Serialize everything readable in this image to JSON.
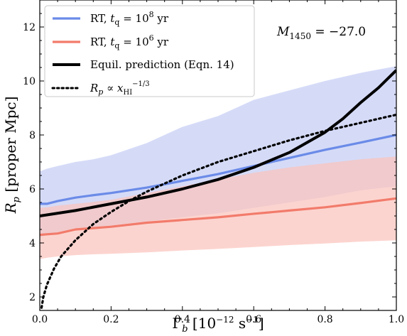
{
  "chart_data": {
    "type": "line",
    "xlabel": "Γb [10⁻¹² s⁻¹]",
    "ylabel": "Rp [proper Mpc]",
    "xlim": [
      0.0,
      1.0
    ],
    "ylim": [
      1.5,
      13.0
    ],
    "xticks": [
      0.0,
      0.2,
      0.4,
      0.6,
      0.8,
      1.0
    ],
    "xtick_labels": [
      "0.0",
      "0.2",
      "0.4",
      "0.6",
      "0.8",
      "1.0"
    ],
    "yticks": [
      2,
      4,
      6,
      8,
      10,
      12
    ],
    "ytick_labels": [
      "2",
      "4",
      "6",
      "8",
      "10",
      "12"
    ],
    "grid": false,
    "legend_position": "top-left",
    "annotation": "M1450 = −27.0",
    "series": [
      {
        "name": "RT, tq = 10⁸ yr",
        "color": "#6b8be8",
        "band_color": "#c5cdf4",
        "x": [
          0.0,
          0.02,
          0.05,
          0.1,
          0.15,
          0.2,
          0.3,
          0.4,
          0.5,
          0.6,
          0.7,
          0.8,
          0.9,
          1.0
        ],
        "y": [
          5.45,
          5.45,
          5.55,
          5.68,
          5.77,
          5.85,
          6.05,
          6.3,
          6.55,
          6.85,
          7.15,
          7.45,
          7.72,
          8.0
        ],
        "band_upper": [
          6.65,
          6.75,
          6.85,
          7.0,
          7.1,
          7.25,
          7.7,
          8.3,
          8.7,
          9.3,
          9.65,
          10.0,
          10.3,
          10.55
        ],
        "band_lower": [
          4.2,
          4.3,
          4.4,
          4.55,
          4.6,
          4.65,
          4.8,
          4.95,
          5.1,
          5.3,
          5.5,
          5.7,
          5.95,
          6.1
        ]
      },
      {
        "name": "RT, tq = 10⁶ yr",
        "color": "#f27b6b",
        "band_color": "#fbc4bc",
        "x": [
          0.0,
          0.02,
          0.05,
          0.1,
          0.15,
          0.2,
          0.3,
          0.4,
          0.5,
          0.6,
          0.7,
          0.8,
          0.9,
          1.0
        ],
        "y": [
          4.3,
          4.32,
          4.35,
          4.5,
          4.55,
          4.6,
          4.75,
          4.85,
          4.95,
          5.08,
          5.2,
          5.32,
          5.48,
          5.65
        ],
        "band_upper": [
          5.3,
          5.32,
          5.38,
          5.45,
          5.52,
          5.6,
          5.85,
          6.1,
          6.35,
          6.6,
          6.8,
          6.95,
          7.1,
          7.2
        ],
        "band_lower": [
          3.4,
          3.45,
          3.5,
          3.55,
          3.58,
          3.6,
          3.65,
          3.72,
          3.78,
          3.85,
          3.92,
          3.98,
          4.05,
          4.1
        ]
      },
      {
        "name": "Equil. prediction (Eqn. 14)",
        "color": "#000000",
        "style": "solid",
        "x": [
          0.0,
          0.1,
          0.2,
          0.3,
          0.4,
          0.5,
          0.6,
          0.7,
          0.8,
          0.85,
          0.9,
          0.95,
          1.0
        ],
        "y": [
          5.0,
          5.2,
          5.45,
          5.7,
          6.0,
          6.35,
          6.8,
          7.35,
          8.1,
          8.6,
          9.2,
          9.75,
          10.4
        ]
      },
      {
        "name": "Rp ∝ xHI^−1/3",
        "color": "#000000",
        "style": "dotted",
        "x": [
          0.005,
          0.01,
          0.02,
          0.04,
          0.06,
          0.1,
          0.15,
          0.2,
          0.25,
          0.3,
          0.4,
          0.5,
          0.6,
          0.7,
          0.8,
          0.9,
          1.0
        ],
        "y": [
          1.6,
          2.0,
          2.45,
          3.05,
          3.5,
          4.1,
          4.7,
          5.15,
          5.55,
          5.9,
          6.5,
          7.0,
          7.4,
          7.8,
          8.15,
          8.45,
          8.75
        ]
      }
    ]
  }
}
